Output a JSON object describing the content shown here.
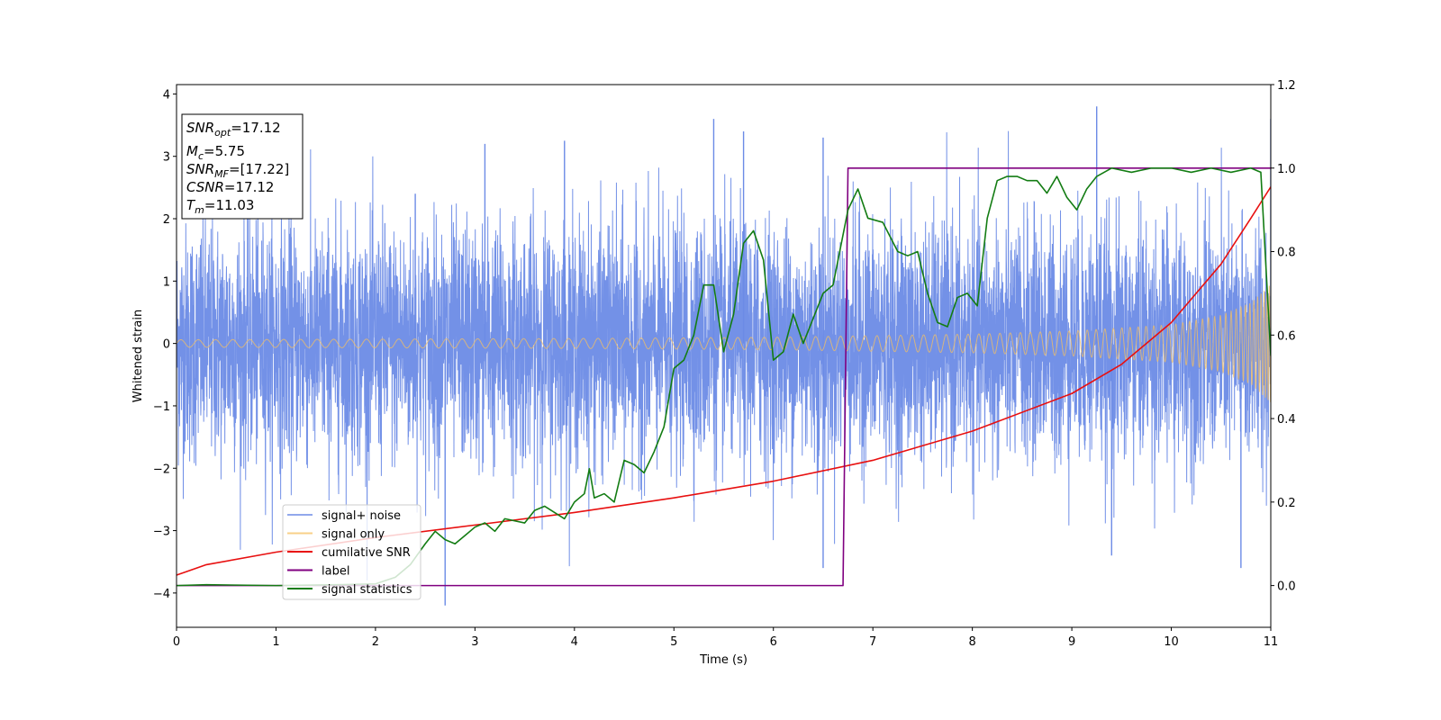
{
  "chart_data": {
    "type": "line",
    "xlabel": "Time (s)",
    "ylabel": "Whitened strain",
    "xlim": [
      0,
      11
    ],
    "ylim_left": [
      -4.55,
      4.15
    ],
    "ylim_right": [
      -0.1,
      1.2
    ],
    "x_ticks": [
      0,
      1,
      2,
      3,
      4,
      5,
      6,
      7,
      8,
      9,
      10,
      11
    ],
    "y_ticks_left": [
      -4,
      -3,
      -2,
      -1,
      0,
      1,
      2,
      3,
      4
    ],
    "y_ticks_right": [
      0.0,
      0.2,
      0.4,
      0.6,
      0.8,
      1.0,
      1.2
    ],
    "x_tick_labels": [
      "0",
      "1",
      "2",
      "3",
      "4",
      "5",
      "6",
      "7",
      "8",
      "9",
      "10",
      "11"
    ],
    "y_tick_labels_left": [
      "−4",
      "−3",
      "−2",
      "−1",
      "0",
      "1",
      "2",
      "3",
      "4"
    ],
    "y_tick_labels_right": [
      "0.0",
      "0.2",
      "0.4",
      "0.6",
      "0.8",
      "1.0",
      "1.2"
    ],
    "grid": false,
    "legend_placement": "lower-left",
    "series": [
      {
        "name": "signal+ noise",
        "axis": "left",
        "color": "#6c8be6",
        "style": "dense noisy trace, roughly symmetric band about 0, typical excursion ±2, peaks to about ±3.7",
        "sample_peaks": [
          {
            "x": 2.4,
            "y": 2.4
          },
          {
            "x": 3.1,
            "y": 3.2
          },
          {
            "x": 3.9,
            "y": 3.25
          },
          {
            "x": 5.4,
            "y": 3.6
          },
          {
            "x": 5.7,
            "y": 3.4
          },
          {
            "x": 6.5,
            "y": 3.3
          },
          {
            "x": 9.25,
            "y": 3.8
          },
          {
            "x": 11.0,
            "y": 3.6
          },
          {
            "x": 2.7,
            "y": -4.2
          },
          {
            "x": 6.5,
            "y": -3.6
          },
          {
            "x": 9.4,
            "y": -3.4
          },
          {
            "x": 10.7,
            "y": -3.6
          }
        ]
      },
      {
        "name": "signal only",
        "axis": "left",
        "color": "#f5c060",
        "style": "chirp oscillation, amplitude growing with time",
        "amplitude_envelope": [
          {
            "x": 0,
            "y": 0.06
          },
          {
            "x": 2,
            "y": 0.07
          },
          {
            "x": 4,
            "y": 0.08
          },
          {
            "x": 6,
            "y": 0.1
          },
          {
            "x": 8,
            "y": 0.15
          },
          {
            "x": 9,
            "y": 0.2
          },
          {
            "x": 10,
            "y": 0.3
          },
          {
            "x": 10.5,
            "y": 0.45
          },
          {
            "x": 10.8,
            "y": 0.65
          },
          {
            "x": 11,
            "y": 0.95
          }
        ]
      },
      {
        "name": "cumilative SNR",
        "axis": "right",
        "color": "#e81010",
        "points": [
          {
            "x": 0.0,
            "y": 0.025
          },
          {
            "x": 0.3,
            "y": 0.05
          },
          {
            "x": 1.0,
            "y": 0.08
          },
          {
            "x": 2.0,
            "y": 0.115
          },
          {
            "x": 3.0,
            "y": 0.145
          },
          {
            "x": 4.0,
            "y": 0.175
          },
          {
            "x": 5.0,
            "y": 0.21
          },
          {
            "x": 6.0,
            "y": 0.25
          },
          {
            "x": 7.0,
            "y": 0.3
          },
          {
            "x": 8.0,
            "y": 0.37
          },
          {
            "x": 9.0,
            "y": 0.46
          },
          {
            "x": 9.5,
            "y": 0.53
          },
          {
            "x": 10.0,
            "y": 0.63
          },
          {
            "x": 10.5,
            "y": 0.77
          },
          {
            "x": 10.8,
            "y": 0.88
          },
          {
            "x": 11.0,
            "y": 0.955
          }
        ]
      },
      {
        "name": "label",
        "axis": "right",
        "color": "#800080",
        "points": [
          {
            "x": 0.0,
            "y": 0.0
          },
          {
            "x": 6.7,
            "y": 0.0
          },
          {
            "x": 6.75,
            "y": 1.0
          },
          {
            "x": 11.0,
            "y": 1.0
          }
        ]
      },
      {
        "name": "signal statistics",
        "axis": "right",
        "color": "#137c13",
        "points": [
          {
            "x": 0.0,
            "y": 0.0
          },
          {
            "x": 0.3,
            "y": 0.002
          },
          {
            "x": 1.0,
            "y": 0.0
          },
          {
            "x": 1.6,
            "y": 0.002
          },
          {
            "x": 2.0,
            "y": 0.004
          },
          {
            "x": 2.2,
            "y": 0.02
          },
          {
            "x": 2.35,
            "y": 0.05
          },
          {
            "x": 2.5,
            "y": 0.1
          },
          {
            "x": 2.6,
            "y": 0.13
          },
          {
            "x": 2.7,
            "y": 0.11
          },
          {
            "x": 2.8,
            "y": 0.1
          },
          {
            "x": 2.9,
            "y": 0.12
          },
          {
            "x": 3.0,
            "y": 0.14
          },
          {
            "x": 3.1,
            "y": 0.15
          },
          {
            "x": 3.2,
            "y": 0.13
          },
          {
            "x": 3.3,
            "y": 0.16
          },
          {
            "x": 3.5,
            "y": 0.15
          },
          {
            "x": 3.6,
            "y": 0.18
          },
          {
            "x": 3.7,
            "y": 0.19
          },
          {
            "x": 3.9,
            "y": 0.16
          },
          {
            "x": 4.0,
            "y": 0.2
          },
          {
            "x": 4.1,
            "y": 0.22
          },
          {
            "x": 4.15,
            "y": 0.28
          },
          {
            "x": 4.2,
            "y": 0.21
          },
          {
            "x": 4.3,
            "y": 0.22
          },
          {
            "x": 4.4,
            "y": 0.2
          },
          {
            "x": 4.5,
            "y": 0.3
          },
          {
            "x": 4.6,
            "y": 0.29
          },
          {
            "x": 4.7,
            "y": 0.27
          },
          {
            "x": 4.8,
            "y": 0.32
          },
          {
            "x": 4.9,
            "y": 0.38
          },
          {
            "x": 5.0,
            "y": 0.52
          },
          {
            "x": 5.1,
            "y": 0.54
          },
          {
            "x": 5.2,
            "y": 0.6
          },
          {
            "x": 5.3,
            "y": 0.72
          },
          {
            "x": 5.4,
            "y": 0.72
          },
          {
            "x": 5.5,
            "y": 0.56
          },
          {
            "x": 5.6,
            "y": 0.65
          },
          {
            "x": 5.7,
            "y": 0.82
          },
          {
            "x": 5.8,
            "y": 0.85
          },
          {
            "x": 5.9,
            "y": 0.78
          },
          {
            "x": 6.0,
            "y": 0.54
          },
          {
            "x": 6.1,
            "y": 0.56
          },
          {
            "x": 6.2,
            "y": 0.65
          },
          {
            "x": 6.3,
            "y": 0.58
          },
          {
            "x": 6.4,
            "y": 0.64
          },
          {
            "x": 6.5,
            "y": 0.7
          },
          {
            "x": 6.6,
            "y": 0.72
          },
          {
            "x": 6.75,
            "y": 0.9
          },
          {
            "x": 6.85,
            "y": 0.95
          },
          {
            "x": 6.95,
            "y": 0.88
          },
          {
            "x": 7.1,
            "y": 0.87
          },
          {
            "x": 7.25,
            "y": 0.8
          },
          {
            "x": 7.35,
            "y": 0.79
          },
          {
            "x": 7.45,
            "y": 0.8
          },
          {
            "x": 7.55,
            "y": 0.7
          },
          {
            "x": 7.65,
            "y": 0.63
          },
          {
            "x": 7.75,
            "y": 0.62
          },
          {
            "x": 7.85,
            "y": 0.69
          },
          {
            "x": 7.95,
            "y": 0.7
          },
          {
            "x": 8.05,
            "y": 0.67
          },
          {
            "x": 8.15,
            "y": 0.88
          },
          {
            "x": 8.25,
            "y": 0.97
          },
          {
            "x": 8.35,
            "y": 0.98
          },
          {
            "x": 8.45,
            "y": 0.98
          },
          {
            "x": 8.55,
            "y": 0.97
          },
          {
            "x": 8.65,
            "y": 0.97
          },
          {
            "x": 8.75,
            "y": 0.94
          },
          {
            "x": 8.85,
            "y": 0.98
          },
          {
            "x": 8.95,
            "y": 0.93
          },
          {
            "x": 9.05,
            "y": 0.9
          },
          {
            "x": 9.15,
            "y": 0.95
          },
          {
            "x": 9.25,
            "y": 0.98
          },
          {
            "x": 9.4,
            "y": 1.0
          },
          {
            "x": 9.6,
            "y": 0.99
          },
          {
            "x": 9.8,
            "y": 1.0
          },
          {
            "x": 10.0,
            "y": 1.0
          },
          {
            "x": 10.2,
            "y": 0.99
          },
          {
            "x": 10.4,
            "y": 1.0
          },
          {
            "x": 10.6,
            "y": 0.99
          },
          {
            "x": 10.8,
            "y": 1.0
          },
          {
            "x": 10.9,
            "y": 0.99
          },
          {
            "x": 11.0,
            "y": 0.55
          }
        ]
      }
    ],
    "annotation_box": [
      {
        "base": "SNR",
        "sub": "opt",
        "value": "=17.12"
      },
      {
        "base": "M",
        "sub": "c",
        "value": "=5.75"
      },
      {
        "base": "SNR",
        "sub": "MF",
        "value": "=[17.22]"
      },
      {
        "base": "CSNR",
        "sub": "",
        "value": "=17.12"
      },
      {
        "base": "T",
        "sub": "m",
        "value": "=11.03"
      }
    ]
  }
}
